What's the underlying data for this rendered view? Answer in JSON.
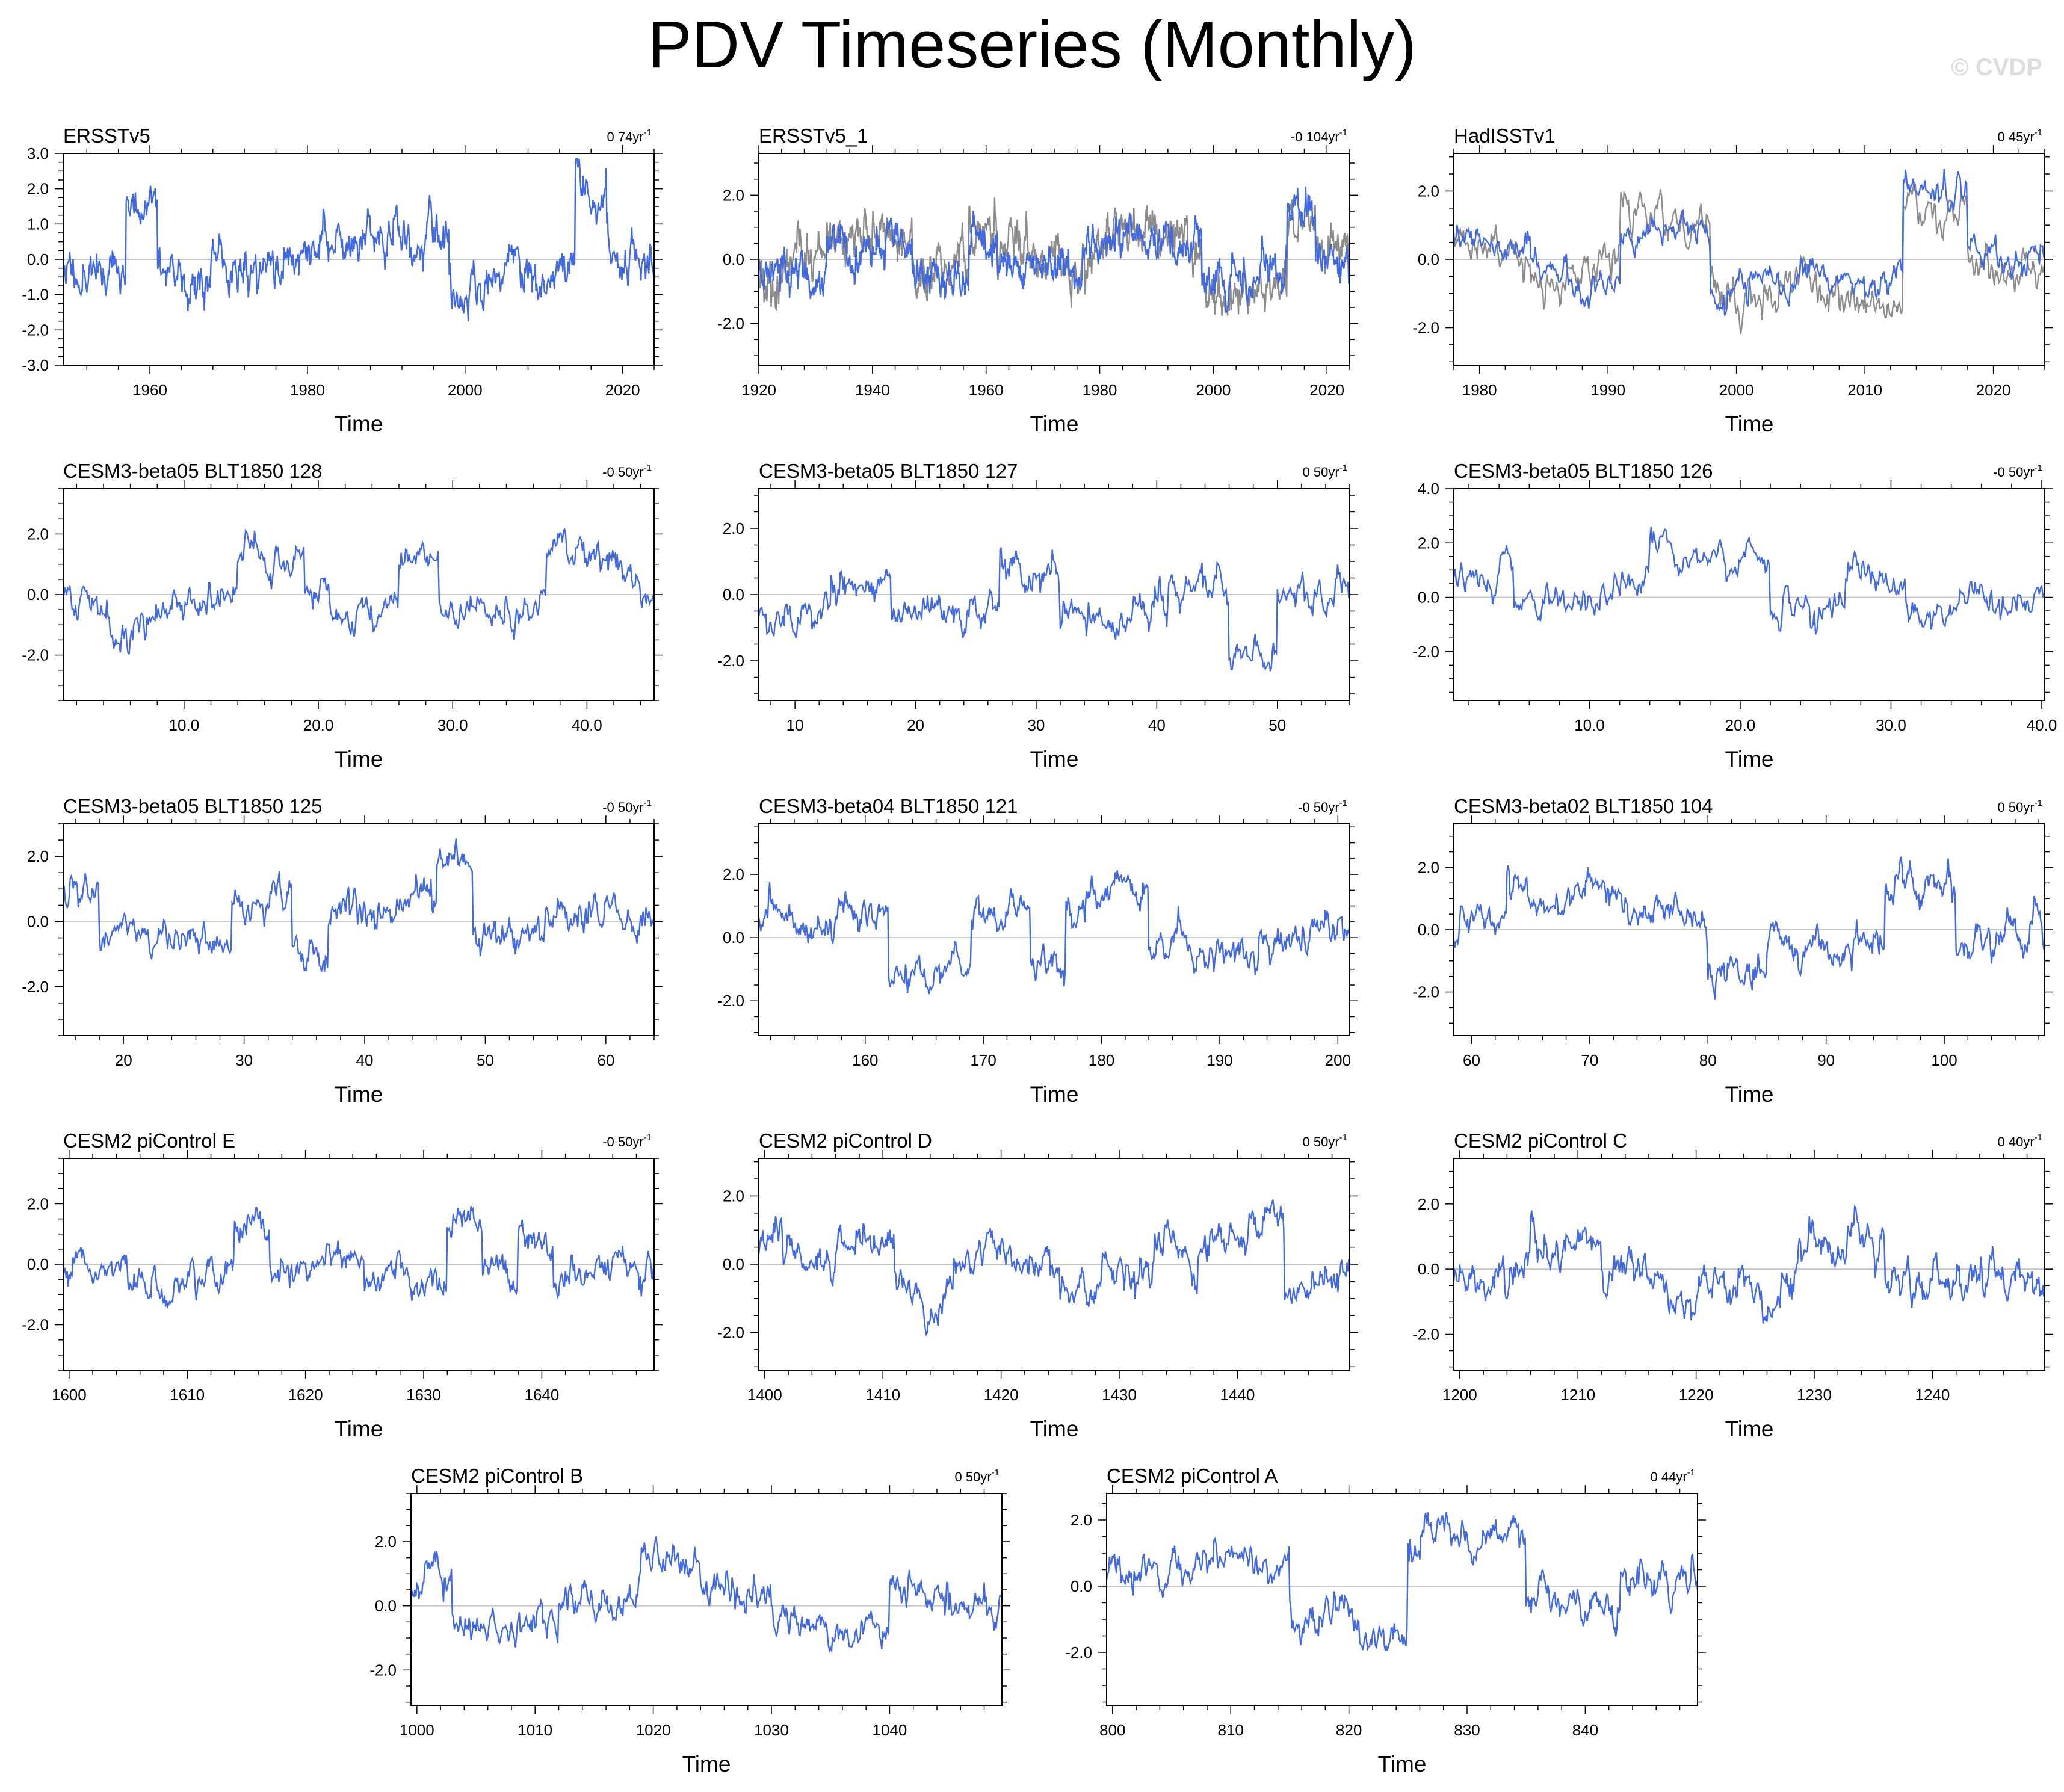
{
  "title": "PDV Timeseries (Monthly)",
  "watermark": "© CVDP",
  "chart_data": [
    {
      "type": "line",
      "title": "ERSSTv5",
      "trend_value": "0 74",
      "trend_unit": "yr",
      "trend_exp": "-1",
      "xlabel": "Time",
      "xlim": [
        1949,
        2024
      ],
      "ylim": [
        -3,
        3
      ],
      "xticks": [
        1960,
        1980,
        2000,
        2020
      ],
      "xtick_labels": [
        "1960",
        "1980",
        "2000",
        "2020"
      ],
      "yticks": [
        -3,
        -2,
        -1,
        0,
        1,
        2,
        3
      ],
      "ytick_labels": [
        "-3.0",
        "-2.0",
        "-1.0",
        "0.0",
        "1.0",
        "2.0",
        "3.0"
      ],
      "seed": 11,
      "amplitude": 1.0,
      "regime": [
        [
          1949,
          1957,
          -0.3
        ],
        [
          1957,
          1961,
          1.5
        ],
        [
          1961,
          1977,
          -0.3
        ],
        [
          1977,
          1998,
          0.4
        ],
        [
          1998,
          2014,
          -0.7
        ],
        [
          2014,
          2018,
          1.6
        ],
        [
          2018,
          2024,
          0.2
        ]
      ],
      "overlay": false
    },
    {
      "type": "line",
      "title": "ERSSTv5_1",
      "trend_value": "-0 104",
      "trend_unit": "yr",
      "trend_exp": "-1",
      "xlabel": "Time",
      "xlim": [
        1920,
        2024
      ],
      "ylim": [
        -3.3,
        3.3
      ],
      "xticks": [
        1920,
        1940,
        1960,
        1980,
        2000,
        2020
      ],
      "xtick_labels": [
        "1920",
        "1940",
        "1960",
        "1980",
        "2000",
        "2020"
      ],
      "yticks": [
        -2,
        0,
        2
      ],
      "ytick_labels": [
        "-2.0",
        "0.0",
        "2.0"
      ],
      "seed": 23,
      "amplitude": 0.9,
      "regime": [
        [
          1920,
          1932,
          -0.5
        ],
        [
          1932,
          1947,
          0.6
        ],
        [
          1947,
          1957,
          -0.6
        ],
        [
          1957,
          1962,
          0.6
        ],
        [
          1962,
          1977,
          -0.3
        ],
        [
          1977,
          1998,
          0.5
        ],
        [
          1998,
          2013,
          -0.6
        ],
        [
          2013,
          2018,
          1.3
        ],
        [
          2018,
          2024,
          0.1
        ]
      ],
      "overlay": true
    },
    {
      "type": "line",
      "title": "HadISSTv1",
      "trend_value": "0 45",
      "trend_unit": "yr",
      "trend_exp": "-1",
      "xlabel": "Time",
      "xlim": [
        1978,
        2024
      ],
      "ylim": [
        -3.1,
        3.1
      ],
      "xticks": [
        1980,
        1990,
        2000,
        2010,
        2020
      ],
      "xtick_labels": [
        "1980",
        "1990",
        "2000",
        "2010",
        "2020"
      ],
      "yticks": [
        -2,
        0,
        2
      ],
      "ytick_labels": [
        "-2.0",
        "0.0",
        "2.0"
      ],
      "seed": 37,
      "amplitude": 0.8,
      "regime": [
        [
          1978,
          1984,
          0.4
        ],
        [
          1984,
          1991,
          -0.5
        ],
        [
          1991,
          1998,
          0.9
        ],
        [
          1998,
          2008,
          -0.8
        ],
        [
          2008,
          2013,
          -1.0
        ],
        [
          2013,
          2018,
          1.7
        ],
        [
          2018,
          2024,
          0.0
        ]
      ],
      "overlay": true
    },
    {
      "type": "line",
      "title": "CESM3-beta05 BLT1850 128",
      "trend_value": "-0 50",
      "trend_unit": "yr",
      "trend_exp": "-1",
      "xlabel": "Time",
      "xlim": [
        1,
        45
      ],
      "ylim": [
        -3.5,
        3.5
      ],
      "xticks": [
        10,
        20,
        30,
        40
      ],
      "xtick_labels": [
        "10.0",
        "20.0",
        "30.0",
        "40.0"
      ],
      "yticks": [
        -2,
        0,
        2
      ],
      "ytick_labels": [
        "-2.0",
        "0.0",
        "2.0"
      ],
      "seed": 41,
      "amplitude": 1.0,
      "regime": [
        [
          1,
          14,
          -0.3
        ],
        [
          14,
          19,
          1.2
        ],
        [
          19,
          26,
          -0.4
        ],
        [
          26,
          29,
          0.9
        ],
        [
          29,
          37,
          -0.6
        ],
        [
          37,
          44,
          0.9
        ],
        [
          44,
          45,
          0
        ]
      ],
      "overlay": false
    },
    {
      "type": "line",
      "title": "CESM3-beta05 BLT1850 127",
      "trend_value": "0 50",
      "trend_unit": "yr",
      "trend_exp": "-1",
      "xlabel": "Time",
      "xlim": [
        7,
        56
      ],
      "ylim": [
        -3.2,
        3.2
      ],
      "xticks": [
        10,
        20,
        30,
        40,
        50
      ],
      "xtick_labels": [
        "10",
        "20",
        "30",
        "40",
        "50"
      ],
      "yticks": [
        -2,
        0,
        2
      ],
      "ytick_labels": [
        "-2.0",
        "0.0",
        "2.0"
      ],
      "seed": 53,
      "amplitude": 0.9,
      "regime": [
        [
          7,
          13,
          -0.5
        ],
        [
          13,
          18,
          0.5
        ],
        [
          18,
          27,
          -0.6
        ],
        [
          27,
          32,
          1.2
        ],
        [
          32,
          41,
          -0.3
        ],
        [
          41,
          46,
          0.2
        ],
        [
          46,
          50,
          -1.6
        ],
        [
          50,
          56,
          0.3
        ]
      ],
      "overlay": false
    },
    {
      "type": "line",
      "title": "CESM3-beta05 BLT1850 126",
      "trend_value": "-0 50",
      "trend_unit": "yr",
      "trend_exp": "-1",
      "xlabel": "Time",
      "xlim": [
        1,
        40.2
      ],
      "ylim": [
        -3.8,
        4.0
      ],
      "xticks": [
        10,
        20,
        30,
        40
      ],
      "xtick_labels": [
        "10.0",
        "20.0",
        "30.0",
        "40.0"
      ],
      "yticks": [
        -2,
        0,
        2,
        4
      ],
      "ytick_labels": [
        "-2.0",
        "0.0",
        "2.0",
        "4.0"
      ],
      "seed": 67,
      "amplitude": 1.0,
      "regime": [
        [
          1,
          5,
          0.7
        ],
        [
          5,
          14,
          -0.4
        ],
        [
          14,
          22,
          0.9
        ],
        [
          22,
          27,
          -0.6
        ],
        [
          27,
          31,
          0.5
        ],
        [
          31,
          40.2,
          -0.2
        ]
      ],
      "overlay": false
    },
    {
      "type": "line",
      "title": "CESM3-beta05 BLT1850 125",
      "trend_value": "-0 50",
      "trend_unit": "yr",
      "trend_exp": "-1",
      "xlabel": "Time",
      "xlim": [
        15,
        64
      ],
      "ylim": [
        -3.5,
        3.0
      ],
      "xticks": [
        20,
        30,
        40,
        50,
        60
      ],
      "xtick_labels": [
        "20",
        "30",
        "40",
        "50",
        "60"
      ],
      "yticks": [
        -2,
        0,
        2
      ],
      "ytick_labels": [
        "-2.0",
        "0.0",
        "2.0"
      ],
      "seed": 71,
      "amplitude": 0.9,
      "regime": [
        [
          15,
          18,
          1.2
        ],
        [
          18,
          29,
          -0.5
        ],
        [
          29,
          34,
          0.8
        ],
        [
          34,
          37,
          -1.0
        ],
        [
          37,
          46,
          0.2
        ],
        [
          46,
          49,
          1.4
        ],
        [
          49,
          55,
          -0.6
        ],
        [
          55,
          64,
          0.1
        ]
      ],
      "overlay": false
    },
    {
      "type": "line",
      "title": "CESM3-beta04 BLT1850 121",
      "trend_value": "-0 50",
      "trend_unit": "yr",
      "trend_exp": "-1",
      "xlabel": "Time",
      "xlim": [
        151,
        201
      ],
      "ylim": [
        -3.1,
        3.6
      ],
      "xticks": [
        160,
        170,
        180,
        190,
        200
      ],
      "xtick_labels": [
        "160",
        "170",
        "180",
        "190",
        "200"
      ],
      "yticks": [
        -2,
        0,
        2
      ],
      "ytick_labels": [
        "-2.0",
        "0.0",
        "2.0"
      ],
      "seed": 83,
      "amplitude": 0.9,
      "regime": [
        [
          151,
          162,
          0.6
        ],
        [
          162,
          169,
          -1.2
        ],
        [
          169,
          174,
          0.6
        ],
        [
          174,
          177,
          -0.8
        ],
        [
          177,
          184,
          1.2
        ],
        [
          184,
          197,
          -0.4
        ],
        [
          197,
          201,
          0.4
        ]
      ],
      "overlay": false
    },
    {
      "type": "line",
      "title": "CESM3-beta02 BLT1850 104",
      "trend_value": "0 50",
      "trend_unit": "yr",
      "trend_exp": "-1",
      "xlabel": "Time",
      "xlim": [
        58.5,
        108.5
      ],
      "ylim": [
        -3.4,
        3.4
      ],
      "xticks": [
        60,
        70,
        80,
        90,
        100
      ],
      "xtick_labels": [
        "60",
        "70",
        "80",
        "90",
        "100"
      ],
      "yticks": [
        -2,
        0,
        2
      ],
      "ytick_labels": [
        "-2.0",
        "0.0",
        "2.0"
      ],
      "seed": 97,
      "amplitude": 0.9,
      "regime": [
        [
          58.5,
          63,
          -0.4
        ],
        [
          63,
          72,
          0.7
        ],
        [
          72,
          80,
          0.3
        ],
        [
          80,
          85,
          -1.0
        ],
        [
          85,
          92,
          -0.2
        ],
        [
          92,
          95,
          -0.4
        ],
        [
          95,
          101,
          1.3
        ],
        [
          101,
          108.5,
          -0.2
        ]
      ],
      "overlay": false
    },
    {
      "type": "line",
      "title": "CESM2 piControl E",
      "trend_value": "-0 50",
      "trend_unit": "yr",
      "trend_exp": "-1",
      "xlabel": "Time",
      "xlim": [
        1599.5,
        1649.5
      ],
      "ylim": [
        -3.5,
        3.5
      ],
      "xticks": [
        1600,
        1610,
        1620,
        1630,
        1640
      ],
      "xtick_labels": [
        "1600",
        "1610",
        "1620",
        "1630",
        "1640"
      ],
      "yticks": [
        -2,
        0,
        2
      ],
      "ytick_labels": [
        "-2.0",
        "0.0",
        "2.0"
      ],
      "seed": 101,
      "amplitude": 0.9,
      "regime": [
        [
          1599.5,
          1605,
          -0.2
        ],
        [
          1605,
          1610,
          -0.8
        ],
        [
          1610,
          1614,
          -0.1
        ],
        [
          1614,
          1617,
          1.3
        ],
        [
          1617,
          1625,
          0.0
        ],
        [
          1625,
          1632,
          -1.0
        ],
        [
          1632,
          1635,
          1.3
        ],
        [
          1635,
          1638,
          -0.3
        ],
        [
          1638,
          1641,
          1.2
        ],
        [
          1641,
          1649.5,
          -0.2
        ]
      ],
      "overlay": false
    },
    {
      "type": "line",
      "title": "CESM2 piControl D",
      "trend_value": "0 50",
      "trend_unit": "yr",
      "trend_exp": "-1",
      "xlabel": "Time",
      "xlim": [
        1399.5,
        1449.5
      ],
      "ylim": [
        -3.1,
        3.1
      ],
      "xticks": [
        1400,
        1410,
        1420,
        1430,
        1440
      ],
      "xtick_labels": [
        "1400",
        "1410",
        "1420",
        "1430",
        "1440"
      ],
      "yticks": [
        -2,
        0,
        2
      ],
      "ytick_labels": [
        "-2.0",
        "0.0",
        "2.0"
      ],
      "seed": 113,
      "amplitude": 0.9,
      "regime": [
        [
          1399.5,
          1406,
          0.2
        ],
        [
          1406,
          1411,
          0.7
        ],
        [
          1411,
          1416,
          -0.6
        ],
        [
          1416,
          1425,
          0.3
        ],
        [
          1425,
          1433,
          -0.5
        ],
        [
          1433,
          1441,
          0.4
        ],
        [
          1441,
          1444,
          1.2
        ],
        [
          1444,
          1449.5,
          -0.6
        ]
      ],
      "overlay": false
    },
    {
      "type": "line",
      "title": "CESM2 piControl C",
      "trend_value": "0 40",
      "trend_unit": "yr",
      "trend_exp": "-1",
      "xlabel": "Time",
      "xlim": [
        1199.5,
        1249.5
      ],
      "ylim": [
        -3.1,
        3.4
      ],
      "xticks": [
        1200,
        1210,
        1220,
        1230,
        1240
      ],
      "xtick_labels": [
        "1200",
        "1210",
        "1220",
        "1230",
        "1240"
      ],
      "yticks": [
        -2,
        0,
        2
      ],
      "ytick_labels": [
        "-2.0",
        "0.0",
        "2.0"
      ],
      "seed": 127,
      "amplitude": 1.0,
      "regime": [
        [
          1199.5,
          1206,
          -0.3
        ],
        [
          1206,
          1212,
          0.4
        ],
        [
          1212,
          1219,
          0.0
        ],
        [
          1219,
          1228,
          -0.2
        ],
        [
          1228,
          1236,
          0.8
        ],
        [
          1236,
          1242,
          -0.3
        ],
        [
          1242,
          1249.5,
          0.0
        ]
      ],
      "overlay": false
    },
    {
      "type": "line",
      "title": "CESM2 piControl B",
      "trend_value": "0 50",
      "trend_unit": "yr",
      "trend_exp": "-1",
      "xlabel": "Time",
      "xlim": [
        999.5,
        1049.5
      ],
      "ylim": [
        -3.1,
        3.5
      ],
      "xticks": [
        1000,
        1010,
        1020,
        1030,
        1040
      ],
      "xtick_labels": [
        "1000",
        "1010",
        "1020",
        "1030",
        "1040"
      ],
      "yticks": [
        -2,
        0,
        2
      ],
      "ytick_labels": [
        "-2.0",
        "0.0",
        "2.0"
      ],
      "seed": 131,
      "amplitude": 0.9,
      "regime": [
        [
          999.5,
          1003,
          0.7
        ],
        [
          1003,
          1012,
          -0.8
        ],
        [
          1012,
          1019,
          -0.2
        ],
        [
          1019,
          1024,
          0.8
        ],
        [
          1024,
          1030,
          0.3
        ],
        [
          1030,
          1040,
          -0.6
        ],
        [
          1040,
          1049.5,
          0.3
        ]
      ],
      "overlay": false
    },
    {
      "type": "line",
      "title": "CESM2 piControl A",
      "trend_value": "0 44",
      "trend_unit": "yr",
      "trend_exp": "-1",
      "xlabel": "Time",
      "xlim": [
        799.5,
        849.5
      ],
      "ylim": [
        -3.6,
        2.8
      ],
      "xticks": [
        800,
        810,
        820,
        830,
        840
      ],
      "xtick_labels": [
        "800",
        "810",
        "820",
        "830",
        "840"
      ],
      "yticks": [
        -2,
        0,
        2
      ],
      "ytick_labels": [
        "-2.0",
        "0.0",
        "2.0"
      ],
      "seed": 149,
      "amplitude": 0.9,
      "regime": [
        [
          799.5,
          805,
          0.1
        ],
        [
          805,
          815,
          0.5
        ],
        [
          815,
          825,
          -1.4
        ],
        [
          825,
          835,
          1.4
        ],
        [
          835,
          843,
          -0.8
        ],
        [
          843,
          849.5,
          0.4
        ]
      ],
      "overlay": false
    }
  ]
}
